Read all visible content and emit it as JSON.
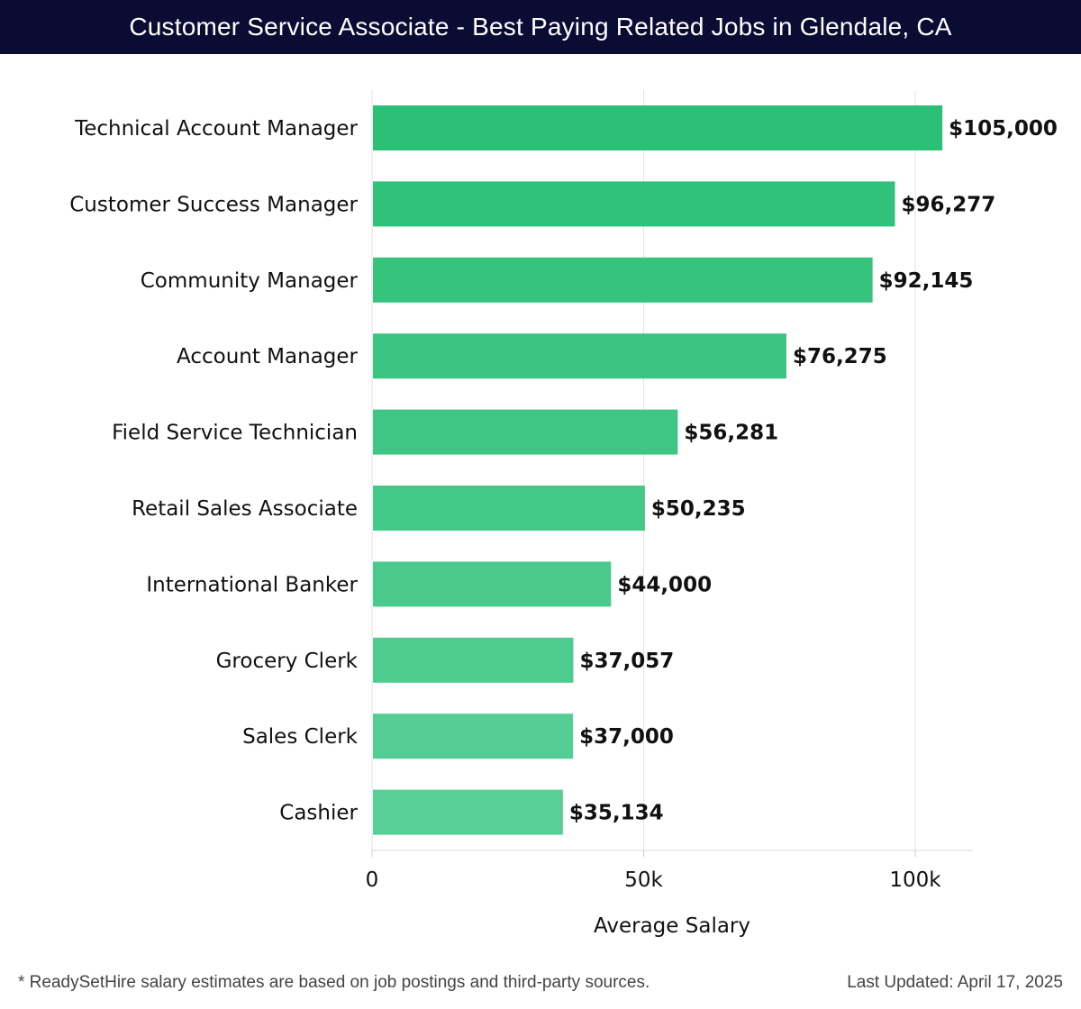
{
  "header": {
    "title": "Customer Service Associate - Best Paying Related Jobs in Glendale, CA"
  },
  "footer": {
    "note": "* ReadySetHire salary estimates are based on job postings and third-party sources.",
    "updated": "Last Updated: April 17, 2025"
  },
  "colors": {
    "header_bg": "#0b0c33",
    "bar_dark": "#2bbf77",
    "bar_light": "#58cf96",
    "grid": "#e3e3e3"
  },
  "chart_data": {
    "type": "bar",
    "orientation": "horizontal",
    "title": "Customer Service Associate - Best Paying Related Jobs in Glendale, CA",
    "xlabel": "Average Salary",
    "ylabel": "",
    "categories": [
      "Technical Account Manager",
      "Customer Success Manager",
      "Community Manager",
      "Account Manager",
      "Field Service Technician",
      "Retail Sales Associate",
      "International Banker",
      "Grocery Clerk",
      "Sales Clerk",
      "Cashier"
    ],
    "values": [
      105000,
      96277,
      92145,
      76275,
      56281,
      50235,
      44000,
      37057,
      37000,
      35134
    ],
    "value_labels": [
      "$105,000",
      "$96,277",
      "$92,145",
      "$76,275",
      "$56,281",
      "$50,235",
      "$44,000",
      "$37,057",
      "$37,000",
      "$35,134"
    ],
    "xlim": [
      0,
      110000
    ],
    "xticks": [
      0,
      50000,
      100000
    ],
    "xtick_labels": [
      "0",
      "50k",
      "100k"
    ],
    "grid": true
  }
}
